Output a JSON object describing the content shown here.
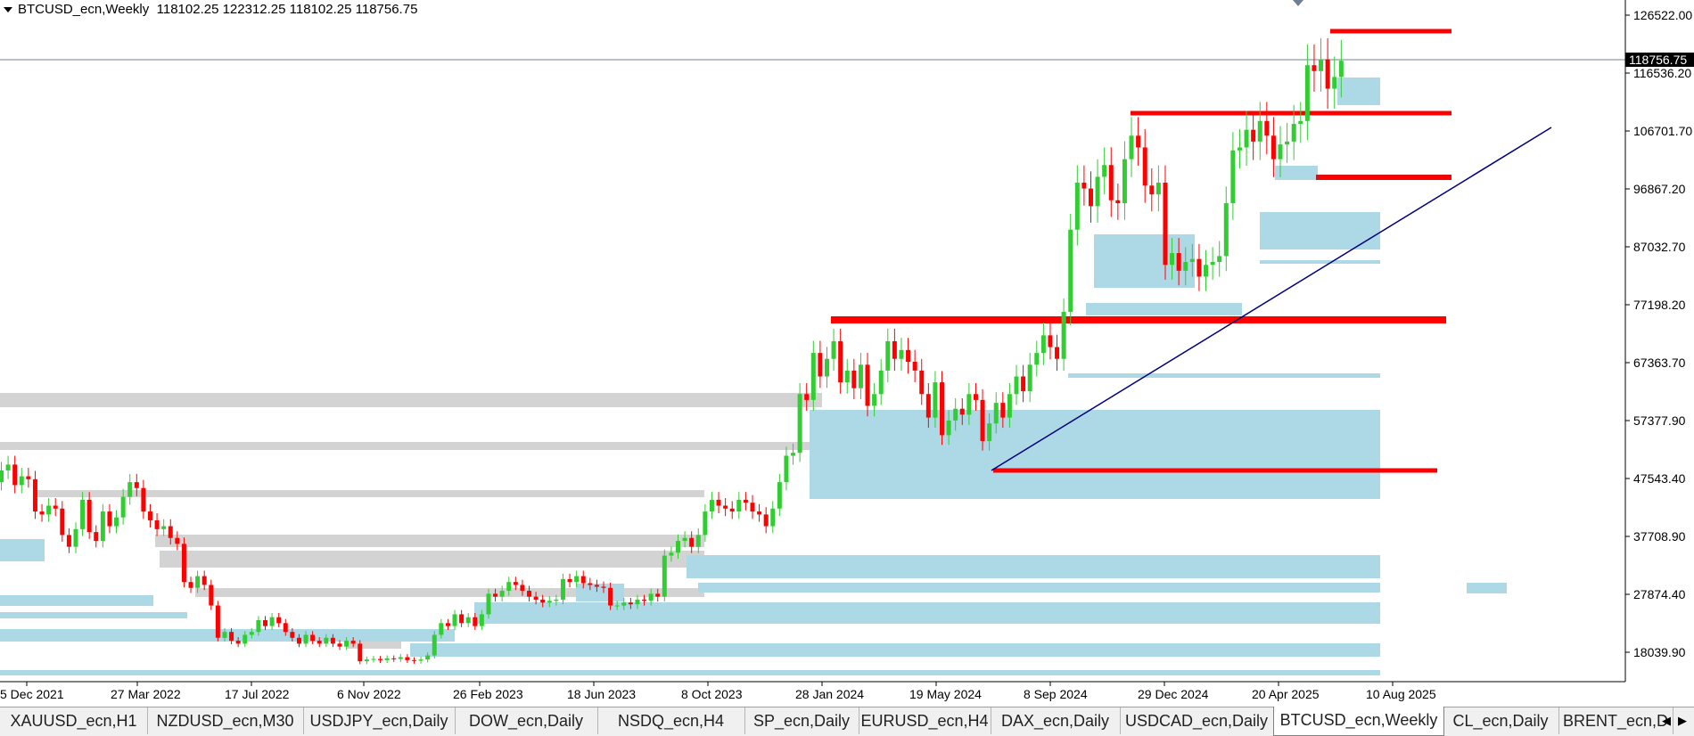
{
  "header": {
    "symbol": "BTCUSD_ecn,Weekly",
    "ohlc": "118102.25 122312.25 118102.25 118756.75"
  },
  "price_axis": {
    "labels": [
      "126522.00",
      "116536.20",
      "106701.70",
      "96867.20",
      "87032.70",
      "77198.20",
      "67363.70",
      "57377.90",
      "47543.40",
      "37708.90",
      "27874.40",
      "18039.90"
    ],
    "current_price": "118756.75"
  },
  "time_axis": {
    "labels": [
      "5 Dec 2021",
      "27 Mar 2022",
      "17 Jul 2022",
      "6 Nov 2022",
      "26 Feb 2023",
      "18 Jun 2023",
      "8 Oct 2023",
      "28 Jan 2024",
      "19 May 2024",
      "8 Sep 2024",
      "29 Dec 2024",
      "20 Apr 2025",
      "10 Aug 2025"
    ]
  },
  "tabs": [
    {
      "label": "XAUUSD_ecn,H1",
      "active": false
    },
    {
      "label": "NZDUSD_ecn,M30",
      "active": false
    },
    {
      "label": "USDJPY_ecn,Daily",
      "active": false
    },
    {
      "label": "DOW_ecn,Daily",
      "active": false
    },
    {
      "label": "NSDQ_ecn,H4",
      "active": false
    },
    {
      "label": "SP_ecn,Daily",
      "active": false
    },
    {
      "label": "EURUSD_ecn,H4",
      "active": false
    },
    {
      "label": "DAX_ecn,Daily",
      "active": false
    },
    {
      "label": "USDCAD_ecn,Daily",
      "active": false
    },
    {
      "label": "BTCUSD_ecn,Weekly",
      "active": true
    },
    {
      "label": "CL_ecn,Daily",
      "active": false
    },
    {
      "label": "BRENT_ecn,D",
      "active": false
    }
  ],
  "colors": {
    "bull": "#32cd32",
    "bear": "#ff0000",
    "demand_zone": "#add8e6",
    "supply_zone": "#d3d3d3",
    "level_line": "#ff0000",
    "trendline": "#000080",
    "grid_line": "#708090"
  },
  "icons": {
    "dropdown": "triangle-down-icon",
    "scroll_left": "arrow-left-icon",
    "scroll_right": "arrow-right-icon"
  }
}
